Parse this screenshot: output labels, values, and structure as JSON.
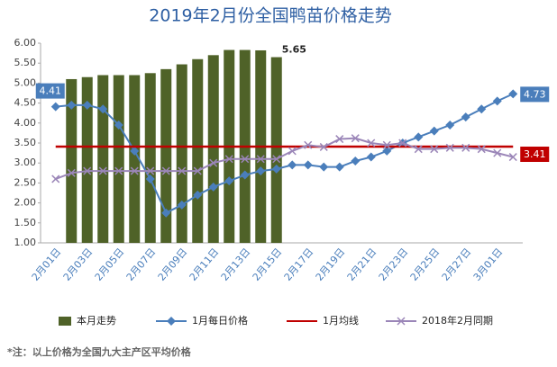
{
  "chart_data": {
    "type": "bar",
    "title": "2019年2月份全国鸭苗价格走势",
    "footnote": "*注：以上价格为全国九大主产区平均价格",
    "categories": [
      "2月01日",
      null,
      "2月03日",
      null,
      "2月05日",
      null,
      "2月07日",
      null,
      "2月09日",
      null,
      "2月11日",
      null,
      "2月13日",
      null,
      "2月15日",
      null,
      "2月17日",
      null,
      "2月19日",
      null,
      "2月21日",
      null,
      "2月23日",
      null,
      "2月25日",
      null,
      "2月27日",
      null,
      "3月01日",
      null
    ],
    "ylim": [
      1,
      6
    ],
    "yticks": [
      {
        "value": 1,
        "label": "1.00"
      },
      {
        "value": 1.5,
        "label": "1.50"
      },
      {
        "value": 2,
        "label": "2.00"
      },
      {
        "value": 2.5,
        "label": "2.50"
      },
      {
        "value": 3,
        "label": "3.00"
      },
      {
        "value": 3.5,
        "label": "3.50"
      },
      {
        "value": 4,
        "label": "4.00"
      },
      {
        "value": 4.5,
        "label": "4.50"
      },
      {
        "value": 5,
        "label": "5.00"
      },
      {
        "value": 5.5,
        "label": "5.50"
      },
      {
        "value": 6,
        "label": "6.00"
      }
    ],
    "grid": false,
    "series": [
      {
        "name": "本月走势",
        "type": "bar",
        "color": "#4f6228",
        "values": [
          null,
          5.1,
          5.15,
          5.2,
          5.2,
          5.2,
          5.25,
          5.35,
          5.47,
          5.6,
          5.7,
          5.83,
          5.83,
          5.82,
          5.65,
          null,
          null,
          null,
          null,
          null,
          null,
          null,
          null,
          null,
          null,
          null,
          null,
          null,
          null,
          null
        ],
        "value_labels": [
          null,
          null,
          null,
          null,
          null,
          null,
          null,
          null,
          null,
          null,
          null,
          null,
          null,
          null,
          "5.65",
          null,
          null,
          null,
          null,
          null,
          null,
          null,
          null,
          null,
          null,
          null,
          null,
          null,
          null,
          null
        ]
      },
      {
        "name": "1月每日价格",
        "type": "line",
        "marker": "diamond",
        "color": "#4a7ebb",
        "values": [
          4.41,
          4.45,
          4.45,
          4.35,
          3.95,
          3.3,
          2.6,
          1.75,
          1.95,
          2.2,
          2.4,
          2.55,
          2.7,
          2.8,
          2.85,
          2.95,
          2.95,
          2.9,
          2.9,
          3.05,
          3.15,
          3.3,
          3.5,
          3.65,
          3.8,
          3.95,
          4.15,
          4.35,
          4.55,
          4.73
        ],
        "value_labels": [
          "4.41",
          null,
          null,
          null,
          null,
          null,
          null,
          null,
          null,
          null,
          null,
          null,
          null,
          null,
          null,
          null,
          null,
          null,
          null,
          null,
          null,
          null,
          null,
          null,
          null,
          null,
          null,
          null,
          null,
          "4.73"
        ]
      },
      {
        "name": "1月均线",
        "type": "line",
        "marker": "none",
        "color": "#c00000",
        "values": [
          3.41,
          3.41,
          3.41,
          3.41,
          3.41,
          3.41,
          3.41,
          3.41,
          3.41,
          3.41,
          3.41,
          3.41,
          3.41,
          3.41,
          3.41,
          3.41,
          3.41,
          3.41,
          3.41,
          3.41,
          3.41,
          3.41,
          3.41,
          3.41,
          3.41,
          3.41,
          3.41,
          3.41,
          3.41,
          3.41
        ],
        "value_labels": [
          null,
          null,
          null,
          null,
          null,
          null,
          null,
          null,
          null,
          null,
          null,
          null,
          null,
          null,
          null,
          null,
          null,
          null,
          null,
          null,
          null,
          null,
          null,
          null,
          null,
          null,
          null,
          null,
          null,
          "3.41"
        ]
      },
      {
        "name": "2018年2月同期",
        "type": "line",
        "marker": "x",
        "color": "#9b86b8",
        "values": [
          2.6,
          2.75,
          2.8,
          2.8,
          2.8,
          2.8,
          2.8,
          2.8,
          2.8,
          2.8,
          3.0,
          3.1,
          3.1,
          3.1,
          3.1,
          3.3,
          3.45,
          3.4,
          3.6,
          3.62,
          3.5,
          3.45,
          3.5,
          3.35,
          3.35,
          3.38,
          3.38,
          3.35,
          3.25,
          3.15
        ]
      }
    ]
  }
}
